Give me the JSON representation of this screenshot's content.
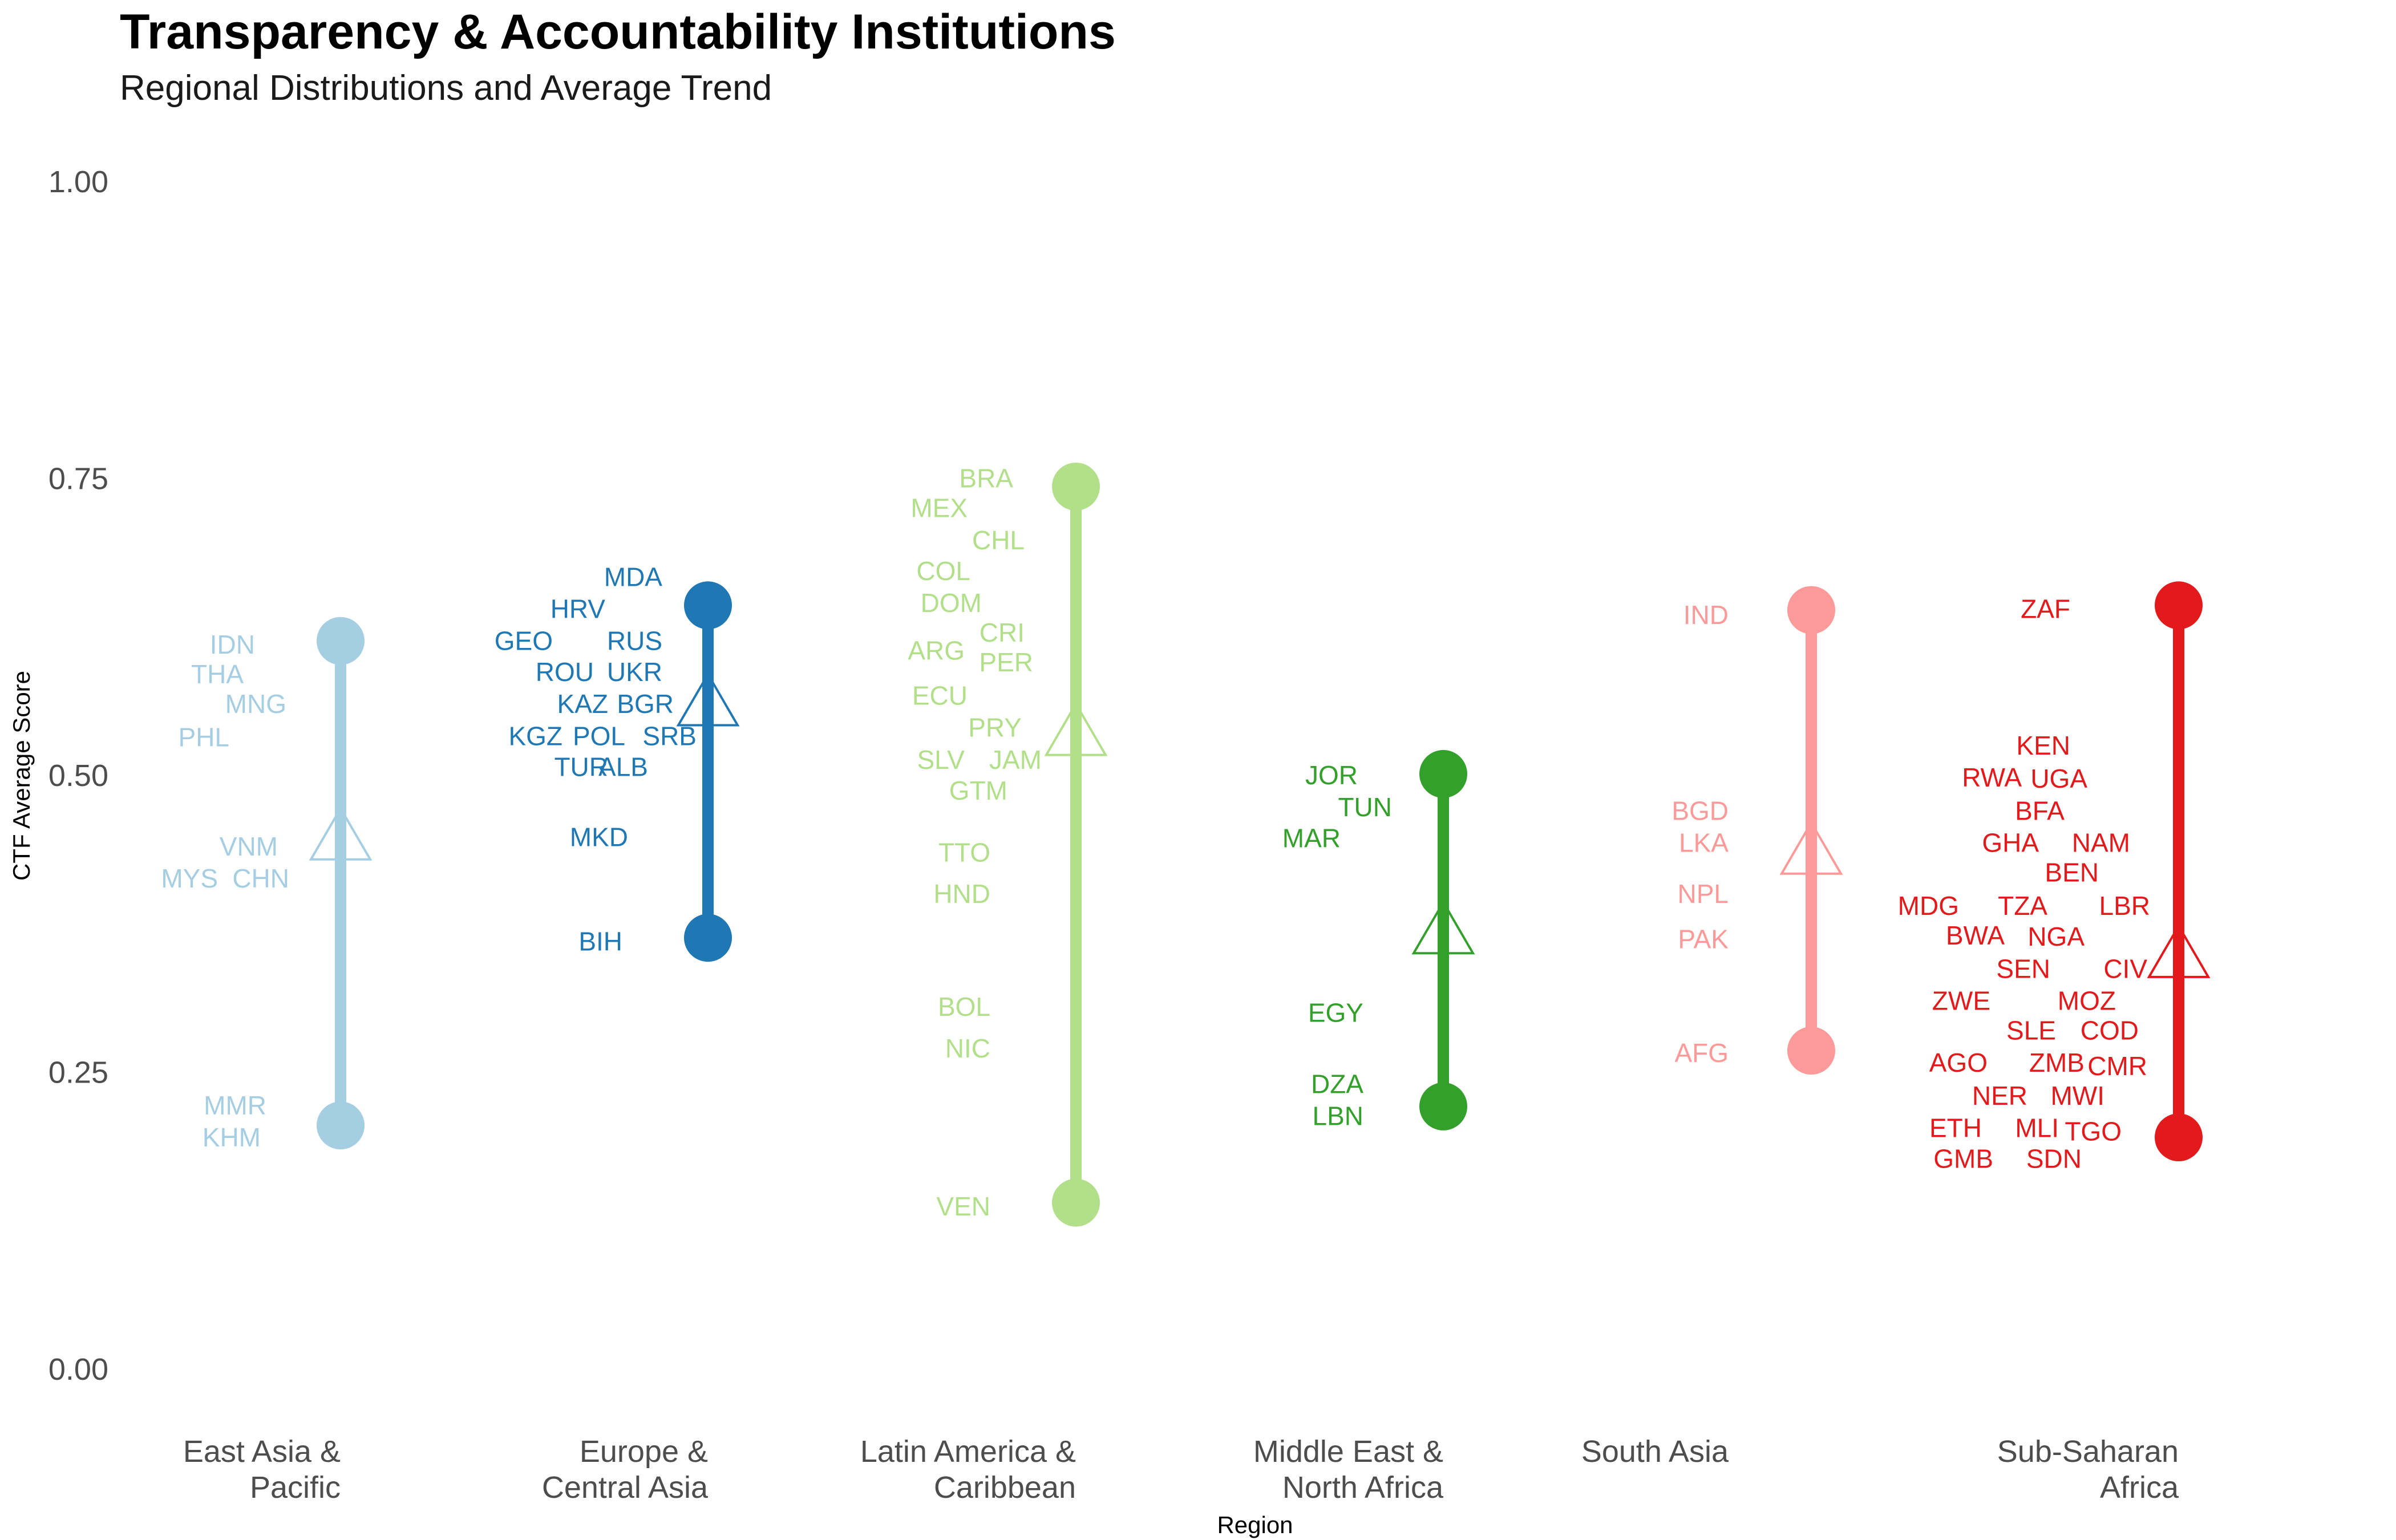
{
  "chart_data": {
    "type": "dumbbell",
    "title": "Transparency & Accountability Institutions",
    "subtitle": "Regional Distributions and Average Trend",
    "xlabel": "Region",
    "ylabel": "CTF Average Score",
    "ylim": [
      0,
      1
    ],
    "yticks": [
      "0.00",
      "0.25",
      "0.50",
      "0.75",
      "1.00"
    ],
    "grid": false,
    "regions": [
      {
        "name": "East Asia & Pacific",
        "label_lines": [
          "East Asia &",
          "Pacific"
        ],
        "color": "#a6cee3",
        "min": 0.205,
        "max": 0.613,
        "mean": 0.447,
        "countries": [
          {
            "code": "IDN",
            "score": 0.61
          },
          {
            "code": "THA",
            "score": 0.585
          },
          {
            "code": "MNG",
            "score": 0.56
          },
          {
            "code": "PHL",
            "score": 0.532
          },
          {
            "code": "VNM",
            "score": 0.44
          },
          {
            "code": "MYS",
            "score": 0.413
          },
          {
            "code": "CHN",
            "score": 0.413
          },
          {
            "code": "MMR",
            "score": 0.222
          },
          {
            "code": "KHM",
            "score": 0.195
          }
        ]
      },
      {
        "name": "Europe & Central Asia",
        "label_lines": [
          "Europe &",
          "Central Asia"
        ],
        "color": "#1f78b4",
        "min": 0.363,
        "max": 0.643,
        "mean": 0.56,
        "countries": [
          {
            "code": "MDA",
            "score": 0.667
          },
          {
            "code": "HRV",
            "score": 0.64
          },
          {
            "code": "GEO",
            "score": 0.613
          },
          {
            "code": "RUS",
            "score": 0.613
          },
          {
            "code": "ROU",
            "score": 0.587
          },
          {
            "code": "UKR",
            "score": 0.587
          },
          {
            "code": "KAZ",
            "score": 0.56
          },
          {
            "code": "BGR",
            "score": 0.56
          },
          {
            "code": "KGZ",
            "score": 0.533
          },
          {
            "code": "POL",
            "score": 0.533
          },
          {
            "code": "SRB",
            "score": 0.533
          },
          {
            "code": "TUR",
            "score": 0.507
          },
          {
            "code": "ALB",
            "score": 0.507
          },
          {
            "code": "MKD",
            "score": 0.448
          },
          {
            "code": "BIH",
            "score": 0.36
          }
        ]
      },
      {
        "name": "Latin America & Caribbean",
        "label_lines": [
          "Latin America &",
          "Caribbean"
        ],
        "color": "#b2df8a",
        "min": 0.14,
        "max": 0.743,
        "mean": 0.535,
        "countries": [
          {
            "code": "BRA",
            "score": 0.75
          },
          {
            "code": "MEX",
            "score": 0.725
          },
          {
            "code": "CHL",
            "score": 0.698
          },
          {
            "code": "COL",
            "score": 0.672
          },
          {
            "code": "DOM",
            "score": 0.645
          },
          {
            "code": "CRI",
            "score": 0.62
          },
          {
            "code": "ARG",
            "score": 0.605
          },
          {
            "code": "PER",
            "score": 0.595
          },
          {
            "code": "ECU",
            "score": 0.567
          },
          {
            "code": "PRY",
            "score": 0.54
          },
          {
            "code": "SLV",
            "score": 0.513
          },
          {
            "code": "JAM",
            "score": 0.513
          },
          {
            "code": "GTM",
            "score": 0.487
          },
          {
            "code": "TTO",
            "score": 0.435
          },
          {
            "code": "HND",
            "score": 0.4
          },
          {
            "code": "BOL",
            "score": 0.305
          },
          {
            "code": "NIC",
            "score": 0.27
          },
          {
            "code": "VEN",
            "score": 0.137
          }
        ]
      },
      {
        "name": "Middle East & North Africa",
        "label_lines": [
          "Middle East &",
          "North Africa"
        ],
        "color": "#33a02c",
        "min": 0.221,
        "max": 0.501,
        "mean": 0.368,
        "countries": [
          {
            "code": "JOR",
            "score": 0.5
          },
          {
            "code": "TUN",
            "score": 0.473
          },
          {
            "code": "MAR",
            "score": 0.447
          },
          {
            "code": "EGY",
            "score": 0.3
          },
          {
            "code": "DZA",
            "score": 0.24
          },
          {
            "code": "LBN",
            "score": 0.213
          }
        ]
      },
      {
        "name": "South Asia",
        "label_lines": [
          "South Asia"
        ],
        "color": "#fb9a99",
        "min": 0.268,
        "max": 0.639,
        "mean": 0.435,
        "countries": [
          {
            "code": "IND",
            "score": 0.635
          },
          {
            "code": "BGD",
            "score": 0.47
          },
          {
            "code": "LKA",
            "score": 0.443
          },
          {
            "code": "NPL",
            "score": 0.4
          },
          {
            "code": "PAK",
            "score": 0.362
          },
          {
            "code": "AFG",
            "score": 0.266
          }
        ]
      },
      {
        "name": "Sub-Saharan Africa",
        "label_lines": [
          "Sub-Saharan",
          "Africa"
        ],
        "color": "#e31a1c",
        "min": 0.195,
        "max": 0.643,
        "mean": 0.348,
        "countries": [
          {
            "code": "ZAF",
            "score": 0.64
          },
          {
            "code": "KEN",
            "score": 0.525
          },
          {
            "code": "RWA",
            "score": 0.498
          },
          {
            "code": "UGA",
            "score": 0.497
          },
          {
            "code": "BFA",
            "score": 0.47
          },
          {
            "code": "GHA",
            "score": 0.443
          },
          {
            "code": "NAM",
            "score": 0.443
          },
          {
            "code": "BEN",
            "score": 0.418
          },
          {
            "code": "MDG",
            "score": 0.39
          },
          {
            "code": "TZA",
            "score": 0.39
          },
          {
            "code": "LBR",
            "score": 0.39
          },
          {
            "code": "BWA",
            "score": 0.365
          },
          {
            "code": "NGA",
            "score": 0.364
          },
          {
            "code": "SEN",
            "score": 0.337
          },
          {
            "code": "CIV",
            "score": 0.337
          },
          {
            "code": "ZWE",
            "score": 0.31
          },
          {
            "code": "MOZ",
            "score": 0.31
          },
          {
            "code": "SLE",
            "score": 0.285
          },
          {
            "code": "COD",
            "score": 0.285
          },
          {
            "code": "AGO",
            "score": 0.258
          },
          {
            "code": "ZMB",
            "score": 0.258
          },
          {
            "code": "CMR",
            "score": 0.255
          },
          {
            "code": "NER",
            "score": 0.23
          },
          {
            "code": "MWI",
            "score": 0.23
          },
          {
            "code": "ETH",
            "score": 0.203
          },
          {
            "code": "MLI",
            "score": 0.203
          },
          {
            "code": "TGO",
            "score": 0.2
          },
          {
            "code": "GMB",
            "score": 0.177
          },
          {
            "code": "SDN",
            "score": 0.177
          }
        ]
      }
    ]
  }
}
